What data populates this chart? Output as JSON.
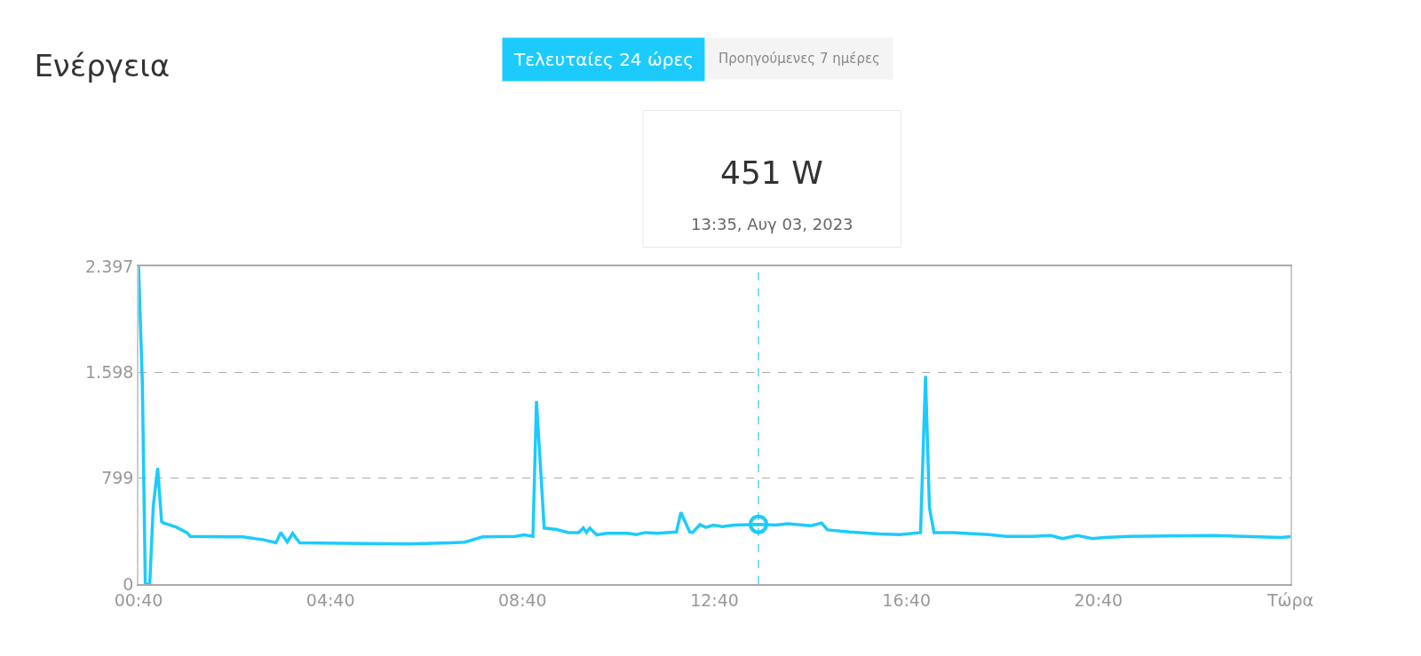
{
  "chart_data": {
    "type": "line",
    "title": "Ενέργεια",
    "annotations": [
      "Τελευταίες 24 ώρες",
      "Προηγούμενες 7 ημέρες",
      "451 W",
      "13:35, Αυγ 03, 2023"
    ],
    "xlim": [
      0.667,
      24.667
    ],
    "xticks": [
      {
        "value": 0.667,
        "label": "00:40"
      },
      {
        "value": 4.667,
        "label": "04:40"
      },
      {
        "value": 8.667,
        "label": "08:40"
      },
      {
        "value": 12.667,
        "label": "12:40"
      },
      {
        "value": 16.667,
        "label": "16:40"
      },
      {
        "value": 20.667,
        "label": "20:40"
      },
      {
        "value": 24.667,
        "label": "Τώρα"
      }
    ],
    "ylim": [
      0,
      2397
    ],
    "yticks": [
      0,
      799,
      {
        "value": 1598,
        "label": "1.598"
      },
      {
        "value": 2397,
        "label": "2.397"
      }
    ],
    "grid": "y",
    "marker": "none",
    "line_style": "solid",
    "ref_lines": [
      {
        "axis": "x",
        "value": 13.583,
        "label": null,
        "color": "#1ccbfb",
        "line_style": "dashed"
      }
    ],
    "series": [
      {
        "color": "#1ccbfb",
        "x": [
          0.667,
          0.746,
          0.808,
          0.9,
          0.974,
          1.066,
          1.147,
          1.18,
          1.455,
          1.671,
          1.745,
          2.842,
          3.275,
          3.53,
          3.63,
          3.766,
          3.877,
          4.025,
          5.309,
          6.295,
          7.159,
          7.466,
          7.835,
          8.514,
          8.699,
          8.884,
          8.958,
          9.119,
          9.378,
          9.624,
          9.84,
          9.933,
          10.0,
          10.07,
          10.21,
          10.425,
          10.86,
          11.04,
          11.227,
          11.473,
          11.874,
          11.967,
          12.15,
          12.21,
          12.366,
          12.49,
          12.644,
          12.83,
          13.077,
          13.583,
          13.94,
          14.186,
          14.68,
          14.9,
          15.02,
          15.48,
          16.1,
          16.528,
          16.96,
          17.064,
          17.145,
          17.24,
          17.64,
          18.38,
          18.75,
          19.29,
          19.67,
          19.92,
          20.23,
          20.54,
          20.78,
          21.21,
          23.06,
          24.48,
          24.667
        ],
        "values": [
          2397,
          1524,
          0,
          0,
          590,
          875,
          471,
          462,
          429,
          389,
          360,
          356,
          334,
          311,
          389,
          318,
          382,
          311,
          307,
          303,
          311,
          316,
          356,
          360,
          371,
          360,
          1380,
          423,
          412,
          389,
          389,
          423,
          389,
          423,
          371,
          384,
          384,
          373,
          389,
          384,
          393,
          541,
          393,
          389,
          449,
          427,
          445,
          434,
          445,
          451,
          445,
          456,
          441,
          461,
          409,
          393,
          378,
          373,
          389,
          1569,
          578,
          389,
          389,
          373,
          360,
          360,
          366,
          344,
          366,
          344,
          351,
          359,
          366,
          351,
          359
        ]
      },
      {
        "type": "scatter",
        "color": "#1ccbfb",
        "marker": "circle",
        "x": [
          13.583
        ],
        "values": [
          451
        ]
      }
    ]
  }
}
